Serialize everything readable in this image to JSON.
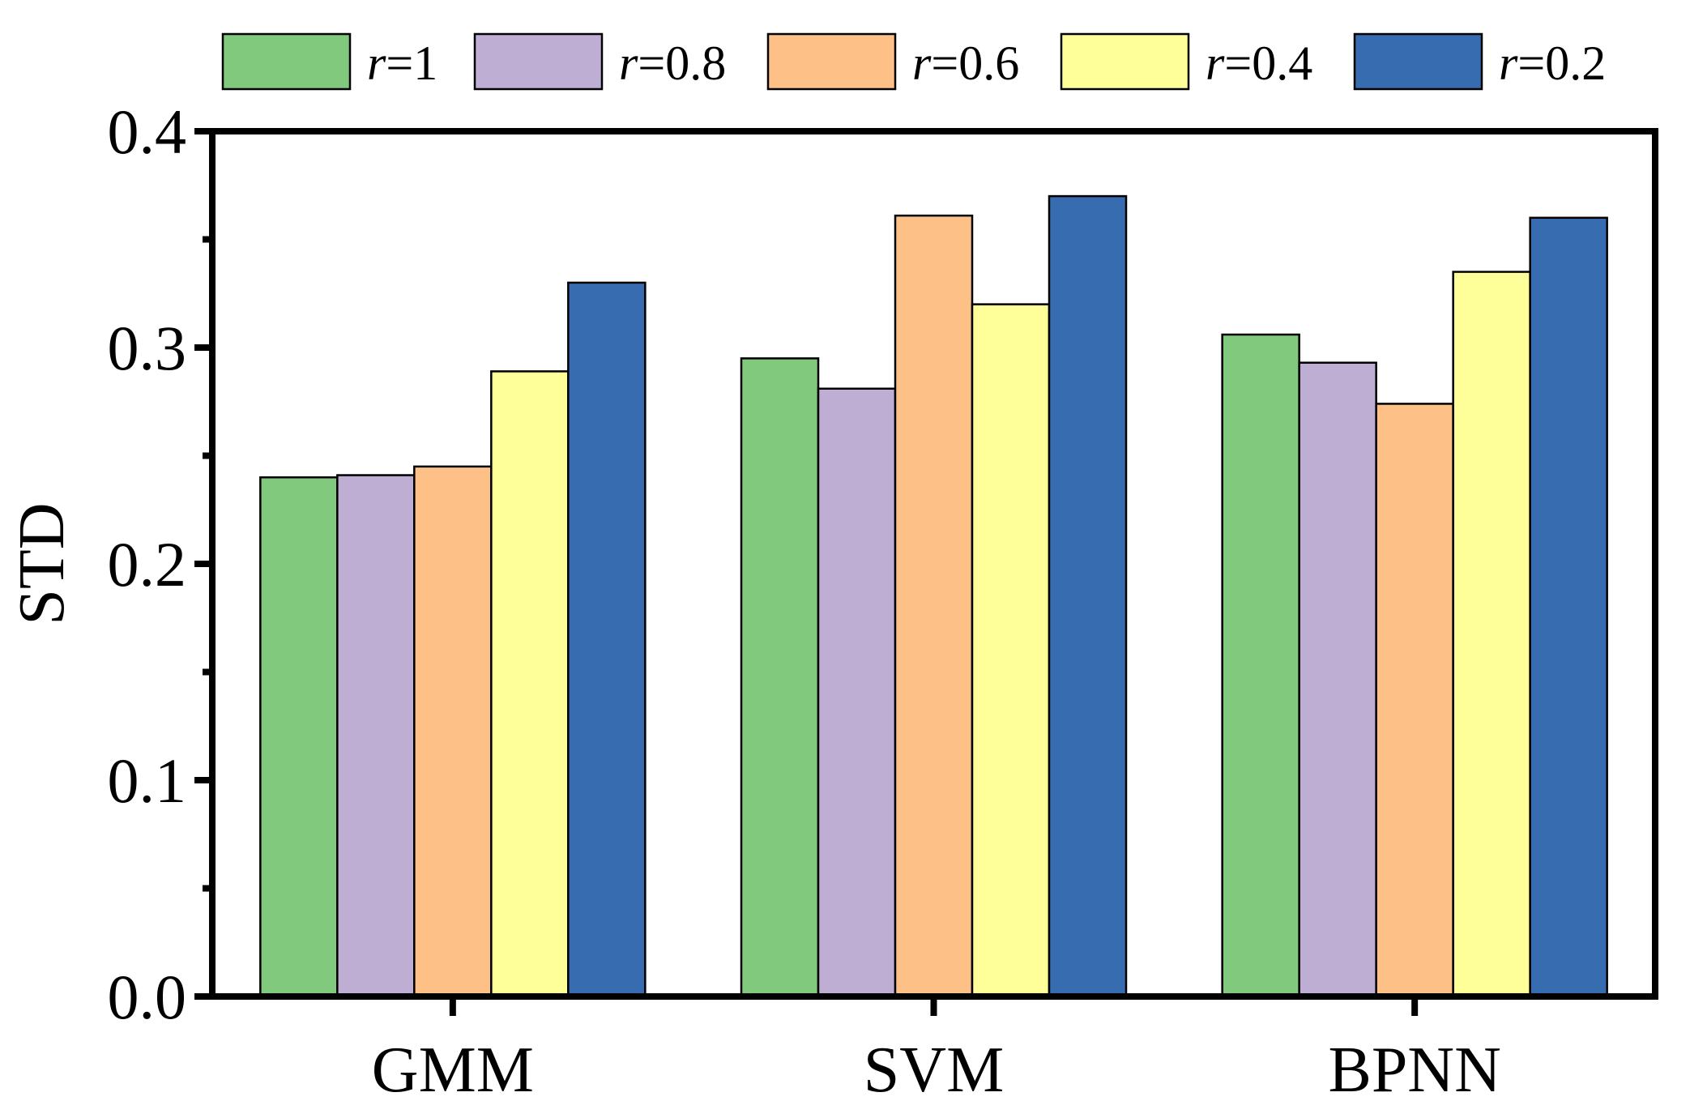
{
  "chart_data": {
    "type": "bar",
    "title": "",
    "xlabel": "",
    "ylabel": "STD",
    "ylim": [
      0,
      0.4
    ],
    "yticks": [
      "0.0",
      "0.1",
      "0.2",
      "0.3",
      "0.4"
    ],
    "grid": false,
    "legend_position": "top",
    "categories": [
      "GMM",
      "SVM",
      "BPNN"
    ],
    "series": [
      {
        "name": "r=1",
        "r_symbol": "r",
        "r_value": "=1",
        "color": "#80c97d",
        "values": [
          0.24,
          0.295,
          0.306
        ]
      },
      {
        "name": "r=0.8",
        "r_symbol": "r",
        "r_value": "=0.8",
        "color": "#beaed4",
        "values": [
          0.241,
          0.281,
          0.293
        ]
      },
      {
        "name": "r=0.6",
        "r_symbol": "r",
        "r_value": "=0.6",
        "color": "#fdc086",
        "values": [
          0.245,
          0.361,
          0.274
        ]
      },
      {
        "name": "r=0.4",
        "r_symbol": "r",
        "r_value": "=0.4",
        "color": "#ffff99",
        "values": [
          0.289,
          0.32,
          0.335
        ]
      },
      {
        "name": "r=0.2",
        "r_symbol": "r",
        "r_value": "=0.2",
        "color": "#386cb0",
        "values": [
          0.33,
          0.37,
          0.36
        ]
      }
    ]
  }
}
